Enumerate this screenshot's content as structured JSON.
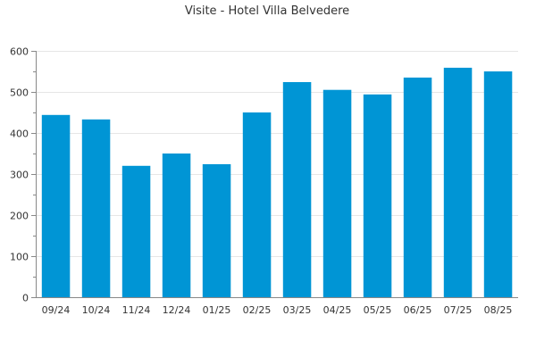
{
  "chart_data": {
    "type": "bar",
    "title": "Visite - Hotel Villa Belvedere",
    "xlabel": "",
    "ylabel": "",
    "categories": [
      "09/24",
      "10/24",
      "11/24",
      "12/24",
      "01/25",
      "02/25",
      "03/25",
      "04/25",
      "05/25",
      "06/25",
      "07/25",
      "08/25"
    ],
    "values": [
      444,
      433,
      320,
      350,
      324,
      450,
      524,
      505,
      494,
      535,
      559,
      550
    ],
    "ylim": [
      0,
      600
    ],
    "yticks": [
      0,
      100,
      200,
      300,
      400,
      500,
      600
    ],
    "grid": true,
    "legend": "none",
    "colors": {
      "bar": "#0095d5",
      "grid": "#e6e6e6",
      "axis": "#888888",
      "text": "#333333"
    }
  }
}
